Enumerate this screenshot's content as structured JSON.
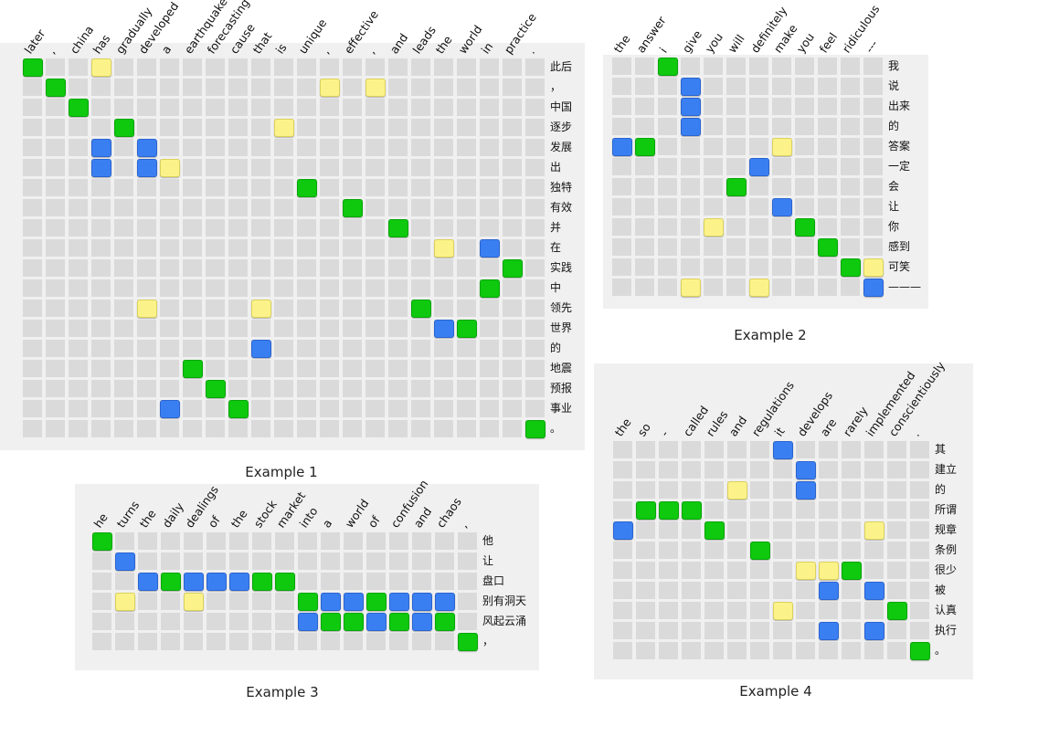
{
  "examples": [
    {
      "caption": "Example 1",
      "source_words": [
        "later",
        ",",
        "china",
        "has",
        "gradually",
        "developed",
        "a",
        "earthquake",
        "forecasting",
        "cause",
        "that",
        "is",
        "unique",
        ",",
        "effective",
        ",",
        "and",
        "leads",
        "the",
        "world",
        "in",
        "practice",
        "."
      ],
      "target_words": [
        "此后",
        "，",
        "中国",
        "逐步",
        "发展",
        "出",
        "独特",
        "有效",
        "并",
        "在",
        "实践",
        "中",
        "领先",
        "世界",
        "的",
        "地震",
        "预报",
        "事业",
        "。"
      ],
      "alignments": [
        {
          "row": 0,
          "col": 0,
          "color": "green"
        },
        {
          "row": 0,
          "col": 3,
          "color": "yellow"
        },
        {
          "row": 1,
          "col": 1,
          "color": "green"
        },
        {
          "row": 1,
          "col": 13,
          "color": "yellow"
        },
        {
          "row": 1,
          "col": 15,
          "color": "yellow"
        },
        {
          "row": 2,
          "col": 2,
          "color": "green"
        },
        {
          "row": 3,
          "col": 4,
          "color": "green"
        },
        {
          "row": 3,
          "col": 11,
          "color": "yellow"
        },
        {
          "row": 4,
          "col": 3,
          "color": "blue"
        },
        {
          "row": 4,
          "col": 5,
          "color": "blue"
        },
        {
          "row": 5,
          "col": 3,
          "color": "blue"
        },
        {
          "row": 5,
          "col": 5,
          "color": "blue"
        },
        {
          "row": 5,
          "col": 6,
          "color": "yellow"
        },
        {
          "row": 6,
          "col": 12,
          "color": "green"
        },
        {
          "row": 7,
          "col": 14,
          "color": "green"
        },
        {
          "row": 8,
          "col": 16,
          "color": "green"
        },
        {
          "row": 9,
          "col": 18,
          "color": "yellow"
        },
        {
          "row": 9,
          "col": 20,
          "color": "blue"
        },
        {
          "row": 10,
          "col": 21,
          "color": "green"
        },
        {
          "row": 11,
          "col": 20,
          "color": "green"
        },
        {
          "row": 12,
          "col": 5,
          "color": "yellow"
        },
        {
          "row": 12,
          "col": 10,
          "color": "yellow"
        },
        {
          "row": 12,
          "col": 17,
          "color": "green"
        },
        {
          "row": 13,
          "col": 18,
          "color": "blue"
        },
        {
          "row": 13,
          "col": 19,
          "color": "green"
        },
        {
          "row": 14,
          "col": 10,
          "color": "blue"
        },
        {
          "row": 15,
          "col": 7,
          "color": "green"
        },
        {
          "row": 16,
          "col": 8,
          "color": "green"
        },
        {
          "row": 17,
          "col": 6,
          "color": "blue"
        },
        {
          "row": 17,
          "col": 9,
          "color": "green"
        },
        {
          "row": 18,
          "col": 22,
          "color": "green"
        }
      ]
    },
    {
      "caption": "Example 2",
      "source_words": [
        "the",
        "answer",
        "i",
        "give",
        "you",
        "will",
        "definitely",
        "make",
        "you",
        "feel",
        "ridiculous",
        "---"
      ],
      "target_words": [
        "我",
        "说",
        "出来",
        "的",
        "答案",
        "一定",
        "会",
        "让",
        "你",
        "感到",
        "可笑",
        "———"
      ],
      "alignments": [
        {
          "row": 0,
          "col": 2,
          "color": "green"
        },
        {
          "row": 1,
          "col": 3,
          "color": "blue"
        },
        {
          "row": 2,
          "col": 3,
          "color": "blue"
        },
        {
          "row": 3,
          "col": 3,
          "color": "blue"
        },
        {
          "row": 4,
          "col": 0,
          "color": "blue"
        },
        {
          "row": 4,
          "col": 1,
          "color": "green"
        },
        {
          "row": 4,
          "col": 7,
          "color": "yellow"
        },
        {
          "row": 5,
          "col": 6,
          "color": "blue"
        },
        {
          "row": 6,
          "col": 5,
          "color": "green"
        },
        {
          "row": 7,
          "col": 7,
          "color": "blue"
        },
        {
          "row": 8,
          "col": 4,
          "color": "yellow"
        },
        {
          "row": 8,
          "col": 8,
          "color": "green"
        },
        {
          "row": 9,
          "col": 9,
          "color": "green"
        },
        {
          "row": 10,
          "col": 10,
          "color": "green"
        },
        {
          "row": 10,
          "col": 11,
          "color": "yellow"
        },
        {
          "row": 11,
          "col": 3,
          "color": "yellow"
        },
        {
          "row": 11,
          "col": 6,
          "color": "yellow"
        },
        {
          "row": 11,
          "col": 11,
          "color": "blue"
        }
      ]
    },
    {
      "caption": "Example 3",
      "source_words": [
        "he",
        "turns",
        "the",
        "daily",
        "dealings",
        "of",
        "the",
        "stock",
        "market",
        "into",
        "a",
        "world",
        "of",
        "confusion",
        "and",
        "chaos",
        ","
      ],
      "target_words": [
        "他",
        "让",
        "盘口",
        "别有洞天",
        "风起云涌",
        "，"
      ],
      "alignments": [
        {
          "row": 0,
          "col": 0,
          "color": "green"
        },
        {
          "row": 1,
          "col": 1,
          "color": "blue"
        },
        {
          "row": 2,
          "col": 2,
          "color": "blue"
        },
        {
          "row": 2,
          "col": 3,
          "color": "green"
        },
        {
          "row": 2,
          "col": 4,
          "color": "blue"
        },
        {
          "row": 2,
          "col": 5,
          "color": "blue"
        },
        {
          "row": 2,
          "col": 6,
          "color": "blue"
        },
        {
          "row": 2,
          "col": 7,
          "color": "green"
        },
        {
          "row": 2,
          "col": 8,
          "color": "green"
        },
        {
          "row": 3,
          "col": 1,
          "color": "yellow"
        },
        {
          "row": 3,
          "col": 4,
          "color": "yellow"
        },
        {
          "row": 3,
          "col": 9,
          "color": "green"
        },
        {
          "row": 3,
          "col": 10,
          "color": "blue"
        },
        {
          "row": 3,
          "col": 11,
          "color": "blue"
        },
        {
          "row": 3,
          "col": 12,
          "color": "green"
        },
        {
          "row": 3,
          "col": 13,
          "color": "blue"
        },
        {
          "row": 3,
          "col": 14,
          "color": "blue"
        },
        {
          "row": 3,
          "col": 15,
          "color": "blue"
        },
        {
          "row": 4,
          "col": 9,
          "color": "blue"
        },
        {
          "row": 4,
          "col": 10,
          "color": "green"
        },
        {
          "row": 4,
          "col": 11,
          "color": "green"
        },
        {
          "row": 4,
          "col": 12,
          "color": "blue"
        },
        {
          "row": 4,
          "col": 13,
          "color": "green"
        },
        {
          "row": 4,
          "col": 14,
          "color": "blue"
        },
        {
          "row": 4,
          "col": 15,
          "color": "green"
        },
        {
          "row": 5,
          "col": 16,
          "color": "green"
        }
      ]
    },
    {
      "caption": "Example 4",
      "source_words": [
        "the",
        "so",
        "-",
        "called",
        "rules",
        "and",
        "regulations",
        "it",
        "develops",
        "are",
        "rarely",
        "implemented",
        "conscientiously",
        "."
      ],
      "target_words": [
        "其",
        "建立",
        "的",
        "所谓",
        "规章",
        "条例",
        "很少",
        "被",
        "认真",
        "执行",
        "。"
      ],
      "alignments": [
        {
          "row": 0,
          "col": 7,
          "color": "blue"
        },
        {
          "row": 1,
          "col": 8,
          "color": "blue"
        },
        {
          "row": 2,
          "col": 5,
          "color": "yellow"
        },
        {
          "row": 2,
          "col": 8,
          "color": "blue"
        },
        {
          "row": 3,
          "col": 1,
          "color": "green"
        },
        {
          "row": 3,
          "col": 2,
          "color": "green"
        },
        {
          "row": 3,
          "col": 3,
          "color": "green"
        },
        {
          "row": 4,
          "col": 0,
          "color": "blue"
        },
        {
          "row": 4,
          "col": 4,
          "color": "green"
        },
        {
          "row": 4,
          "col": 11,
          "color": "yellow"
        },
        {
          "row": 5,
          "col": 6,
          "color": "green"
        },
        {
          "row": 6,
          "col": 8,
          "color": "yellow"
        },
        {
          "row": 6,
          "col": 9,
          "color": "yellow"
        },
        {
          "row": 6,
          "col": 10,
          "color": "green"
        },
        {
          "row": 7,
          "col": 9,
          "color": "blue"
        },
        {
          "row": 7,
          "col": 11,
          "color": "blue"
        },
        {
          "row": 8,
          "col": 7,
          "color": "yellow"
        },
        {
          "row": 8,
          "col": 12,
          "color": "green"
        },
        {
          "row": 9,
          "col": 9,
          "color": "blue"
        },
        {
          "row": 9,
          "col": 11,
          "color": "blue"
        },
        {
          "row": 10,
          "col": 13,
          "color": "green"
        }
      ]
    }
  ]
}
